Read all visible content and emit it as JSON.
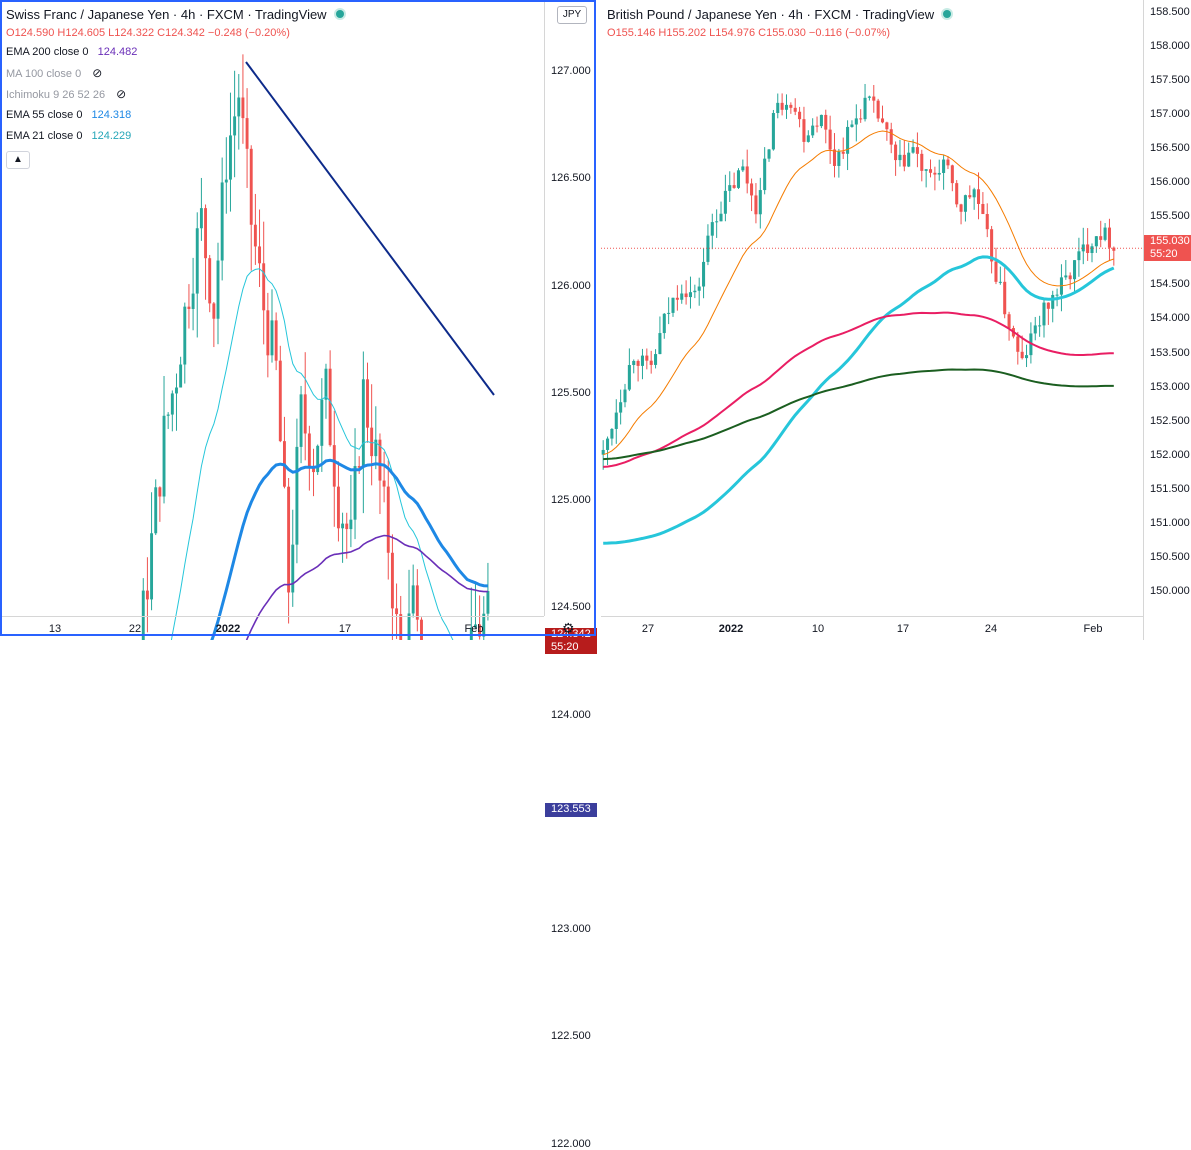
{
  "left": {
    "title": "Swiss Franc / Japanese Yen · 4h · FXCM · TradingView",
    "ohlc": {
      "o": "124.590",
      "h": "124.605",
      "l": "124.322",
      "c": "124.342",
      "chg": "−0.248 (−0.20%)"
    },
    "indicators": [
      {
        "label": "EMA 200 close 0",
        "value": "124.482",
        "color": "#6a2fb8"
      },
      {
        "label": "MA 100 close 0",
        "value": "",
        "color": "#9598a1",
        "hidden": true
      },
      {
        "label": "Ichimoku 9 26 52 26",
        "value": "",
        "color": "#9598a1",
        "hidden": true
      },
      {
        "label": "EMA 55 close 0",
        "value": "124.318",
        "color": "#1e88e5"
      },
      {
        "label": "EMA 21 close 0",
        "value": "124.229",
        "color": "#26c6da"
      }
    ],
    "currency": "JPY",
    "price_ticks": [
      "127.000",
      "126.500",
      "126.000",
      "125.500",
      "125.000",
      "124.500",
      "124.000",
      "123.000",
      "122.500",
      "122.000"
    ],
    "current_price": "124.342",
    "countdown": "55:20",
    "line_price": "123.553",
    "time_ticks": [
      "13",
      "22",
      "2022",
      "17",
      "Feb"
    ],
    "collapse_icon": "chevron-up-icon",
    "settings_icon": "gear-icon",
    "colors": {
      "up": "#26a69a",
      "down": "#ef5350",
      "trend": "#0d2a8a",
      "hline": "#5b2bb5",
      "badge": "#b71c1c",
      "lineBadge": "#3b3e9c"
    }
  },
  "right": {
    "title": "British Pound / Japanese Yen · 4h · FXCM · TradingView",
    "ohlc": {
      "o": "155.146",
      "h": "155.202",
      "l": "154.976",
      "c": "155.030",
      "chg": "−0.116 (−0.07%)"
    },
    "price_ticks": [
      "158.500",
      "158.000",
      "157.500",
      "157.000",
      "156.500",
      "156.000",
      "155.500",
      "155.000",
      "154.500",
      "154.000",
      "153.500",
      "153.000",
      "152.500",
      "152.000",
      "151.500",
      "151.000",
      "150.500",
      "150.000"
    ],
    "current_price": "155.030",
    "countdown": "55:20",
    "time_ticks": [
      "27",
      "2022",
      "10",
      "17",
      "24",
      "Feb"
    ],
    "colors": {
      "up": "#26a69a",
      "down": "#ef5350",
      "badge": "#ef5350"
    }
  }
}
